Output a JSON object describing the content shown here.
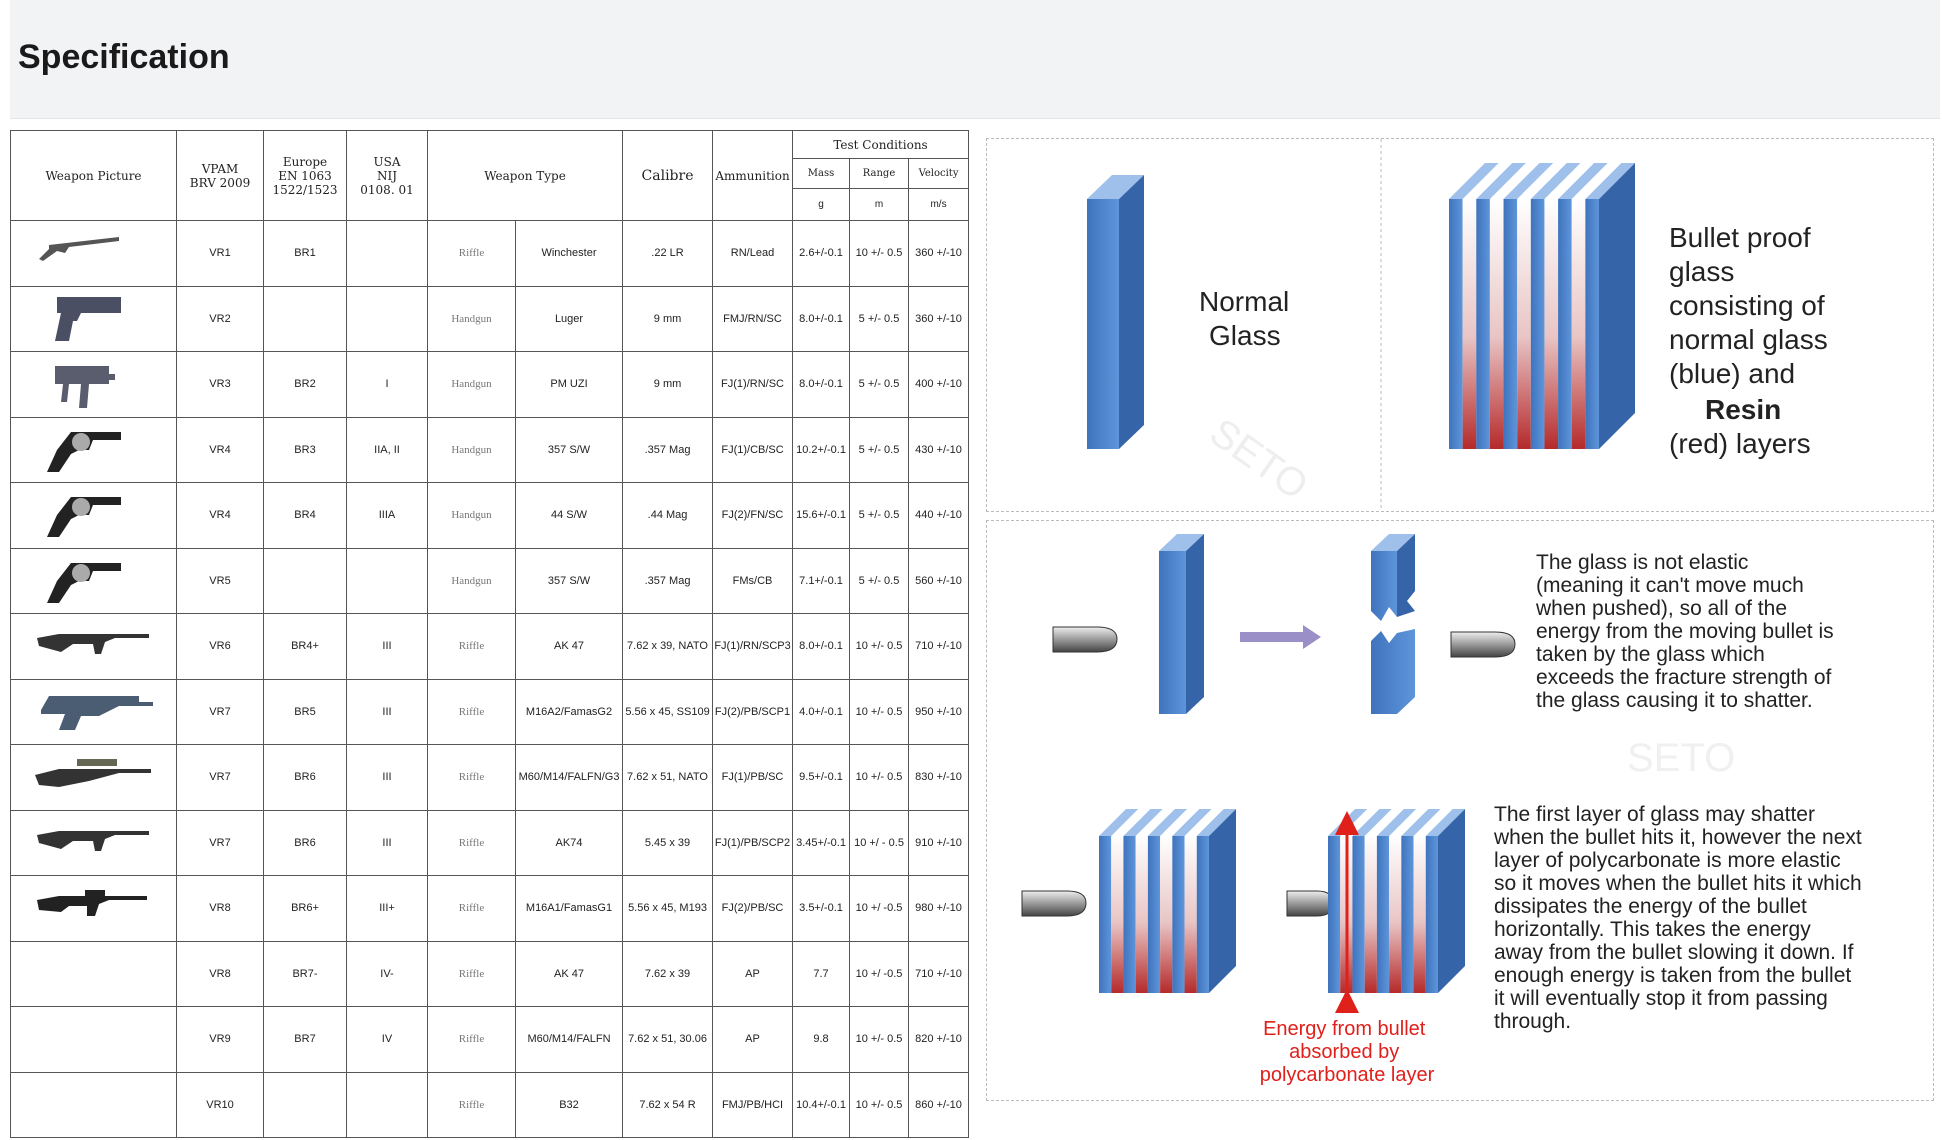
{
  "page": {
    "title": "Specification"
  },
  "table": {
    "headers": {
      "picture": "Weapon Picture",
      "vpam": [
        "VPAM",
        "BRV 2009"
      ],
      "europe": [
        "Europe",
        "EN 1063",
        "1522/1523"
      ],
      "usa": [
        "USA",
        "NIJ",
        "0108. 01"
      ],
      "weapon_type": "Weapon Type",
      "calibre": "Calibre",
      "ammunition": "Ammunition",
      "test_conditions": "Test Conditions",
      "mass": "Mass",
      "range": "Range",
      "velocity": "Velocity",
      "mass_unit": "g",
      "range_unit": "m",
      "velocity_unit": "m/s"
    },
    "rows": [
      {
        "icon": "rifle-lever-icon",
        "vpam": "VR1",
        "europe": "BR1",
        "usa": "",
        "kind": "Riffle",
        "weapon": "Winchester",
        "calibre": ".22 LR",
        "ammo": "RN/Lead",
        "mass": "2.6+/-0.1",
        "range": "10 +/- 0.5",
        "velocity": "360 +/-10"
      },
      {
        "icon": "pistol-icon",
        "vpam": "VR2",
        "europe": "",
        "usa": "",
        "kind": "Handgun",
        "weapon": "Luger",
        "calibre": "9 mm",
        "ammo": "FMJ/RN/SC",
        "mass": "8.0+/-0.1",
        "range": "5 +/- 0.5",
        "velocity": "360 +/-10"
      },
      {
        "icon": "smg-icon",
        "vpam": "VR3",
        "europe": "BR2",
        "usa": "I",
        "kind": "Handgun",
        "weapon": "PM UZI",
        "calibre": "9 mm",
        "ammo": "FJ(1)/RN/SC",
        "mass": "8.0+/-0.1",
        "range": "5 +/- 0.5",
        "velocity": "400 +/-10"
      },
      {
        "icon": "revolver-icon",
        "vpam": "VR4",
        "europe": "BR3",
        "usa": "IIA, II",
        "kind": "Handgun",
        "weapon": "357 S/W",
        "calibre": ".357 Mag",
        "ammo": "FJ(1)/CB/SC",
        "mass": "10.2+/-0.1",
        "range": "5 +/- 0.5",
        "velocity": "430 +/-10"
      },
      {
        "icon": "revolver-icon",
        "vpam": "VR4",
        "europe": "BR4",
        "usa": "IIIA",
        "kind": "Handgun",
        "weapon": "44 S/W",
        "calibre": ".44 Mag",
        "ammo": "FJ(2)/FN/SC",
        "mass": "15.6+/-0.1",
        "range": "5 +/- 0.5",
        "velocity": "440 +/-10"
      },
      {
        "icon": "revolver-icon",
        "vpam": "VR5",
        "europe": "",
        "usa": "",
        "kind": "Handgun",
        "weapon": "357 S/W",
        "calibre": ".357 Mag",
        "ammo": "FMs/CB",
        "mass": "7.1+/-0.1",
        "range": "5 +/- 0.5",
        "velocity": "560 +/-10"
      },
      {
        "icon": "assault-rifle-icon",
        "vpam": "VR6",
        "europe": "BR4+",
        "usa": "III",
        "kind": "Riffle",
        "weapon": "AK 47",
        "calibre": "7.62 x 39, NATO",
        "ammo": "FJ(1)/RN/SCP3",
        "mass": "8.0+/-0.1",
        "range": "10 +/- 0.5",
        "velocity": "710 +/-10"
      },
      {
        "icon": "bullpup-rifle-icon",
        "vpam": "VR7",
        "europe": "BR5",
        "usa": "III",
        "kind": "Riffle",
        "weapon": "M16A2/FamasG2",
        "calibre": "5.56 x 45, SS109",
        "ammo": "FJ(2)/PB/SCP1",
        "mass": "4.0+/-0.1",
        "range": "10 +/- 0.5",
        "velocity": "950 +/-10"
      },
      {
        "icon": "scoped-rifle-icon",
        "vpam": "VR7",
        "europe": "BR6",
        "usa": "III",
        "kind": "Riffle",
        "weapon": "M60/M14/FALFN/G3",
        "calibre": "7.62 x 51, NATO",
        "ammo": "FJ(1)/PB/SC",
        "mass": "9.5+/-0.1",
        "range": "10 +/- 0.5",
        "velocity": "830 +/-10"
      },
      {
        "icon": "assault-rifle-icon",
        "vpam": "VR7",
        "europe": "BR6",
        "usa": "III",
        "kind": "Riffle",
        "weapon": "AK74",
        "calibre": "5.45 x 39",
        "ammo": "FJ(1)/PB/SCP2",
        "mass": "3.45+/-0.1",
        "range": "10 +/ - 0.5",
        "velocity": "910 +/-10"
      },
      {
        "icon": "m16-rifle-icon",
        "vpam": "VR8",
        "europe": "BR6+",
        "usa": "III+",
        "kind": "Riffle",
        "weapon": "M16A1/FamasG1",
        "calibre": "5.56 x 45, M193",
        "ammo": "FJ(2)/PB/SC",
        "mass": "3.5+/-0.1",
        "range": "10 +/ -0.5",
        "velocity": "980 +/-10"
      },
      {
        "icon": "",
        "vpam": "VR8",
        "europe": "BR7-",
        "usa": "IV-",
        "kind": "Riffle",
        "weapon": "AK 47",
        "calibre": "7.62 x 39",
        "ammo": "AP",
        "mass": "7.7",
        "range": "10 +/ -0.5",
        "velocity": "710 +/-10"
      },
      {
        "icon": "",
        "vpam": "VR9",
        "europe": "BR7",
        "usa": "IV",
        "kind": "Riffle",
        "weapon": "M60/M14/FALFN",
        "calibre": "7.62 x 51, 30.06",
        "ammo": "AP",
        "mass": "9.8",
        "range": "10 +/- 0.5",
        "velocity": "820 +/-10"
      },
      {
        "icon": "",
        "vpam": "VR10",
        "europe": "",
        "usa": "",
        "kind": "Riffle",
        "weapon": "B32",
        "calibre": "7.62 x 54 R",
        "ammo": "FMJ/PB/HCI",
        "mass": "10.4+/-0.1",
        "range": "10 +/- 0.5",
        "velocity": "860 +/-10"
      }
    ]
  },
  "diagram": {
    "normal_glass": [
      "Normal",
      "Glass"
    ],
    "bulletproof": [
      "Bullet proof",
      "glass",
      "consisting of",
      "normal glass",
      "(blue) and",
      "Resin",
      "(red) layers"
    ],
    "text1": [
      "The glass is not elastic",
      "(meaning it can't move much",
      "when pushed), so all of the",
      "energy from the moving bullet is",
      "taken by the glass which",
      "exceeds the fracture strength of",
      "the glass causing it to shatter."
    ],
    "text2": [
      "The first layer of glass may shatter",
      "when the bullet hits it, however the next",
      "layer of polycarbonate is more elastic",
      "so it moves when the bullet hits it which",
      "dissipates the energy of the bullet",
      "horizontally.  This takes the energy",
      "away from the bullet slowing it down.  If",
      "enough energy is taken from the bullet",
      "it will eventually stop it from passing",
      "through."
    ],
    "energy_label": [
      "Energy from bullet",
      "absorbed by",
      "polycarbonate layer"
    ],
    "watermark": "SETO",
    "colors": {
      "glass_blue": "#4f86cf",
      "resin_red": "#c0392b",
      "arrow_purple": "#9b8fc7",
      "energy_red": "#e0201b"
    }
  }
}
